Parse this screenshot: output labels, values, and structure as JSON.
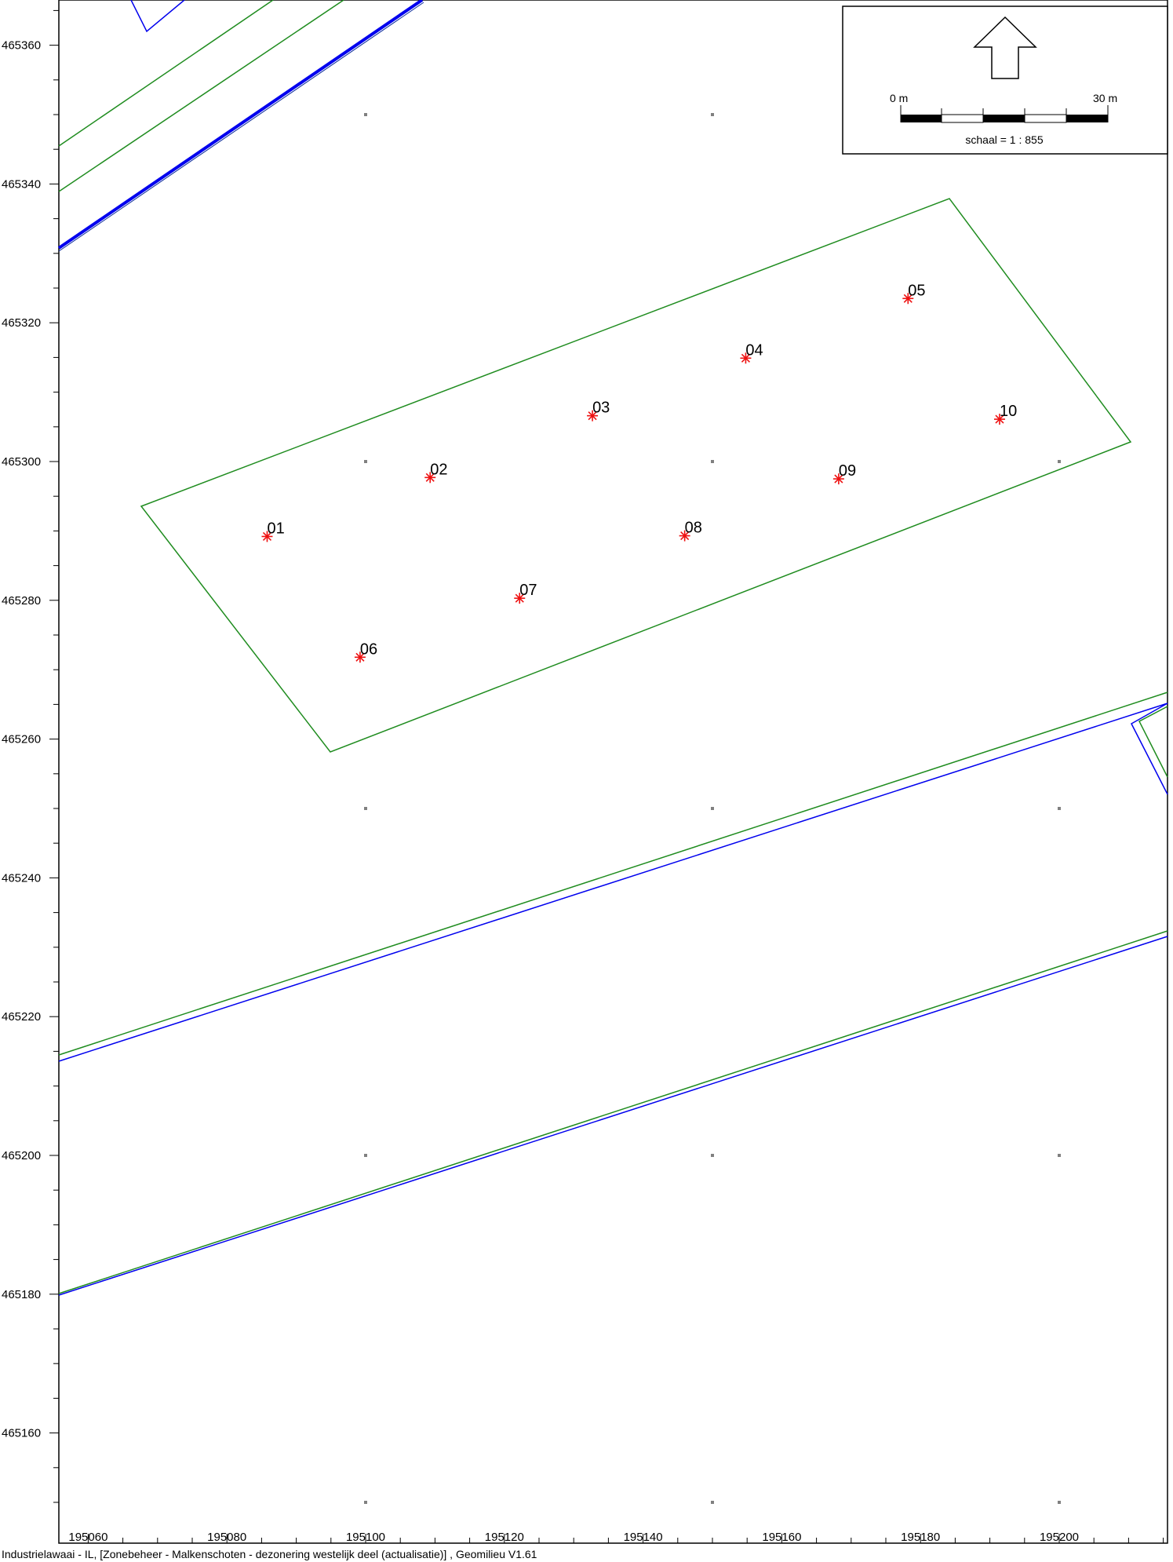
{
  "footer": "Industrielawaai - IL, [Zonebeheer - Malkenschoten - dezonering westelijk deel  (actualisatie)] , Geomilieu V1.61",
  "colors": {
    "zone": "#1f8c1f",
    "road": "#0000ee",
    "point": "#ee1111",
    "grid": "#808080"
  },
  "x_ticks": [
    "195060",
    "195080",
    "195100",
    "195120",
    "195140",
    "195160",
    "195180",
    "195200"
  ],
  "y_ticks": [
    "465360",
    "465340",
    "465320",
    "465300",
    "465280",
    "465260",
    "465240",
    "465220",
    "465200",
    "465180",
    "465160"
  ],
  "scale_bar": {
    "start_label": "0 m",
    "end_label": "30 m",
    "text": "schaal = 1 : 855"
  },
  "north_arrow": "north-arrow-icon",
  "points": [
    {
      "label": "01",
      "x": 195085.8,
      "y": 465289.2
    },
    {
      "label": "02",
      "x": 195109.3,
      "y": 465297.7
    },
    {
      "label": "03",
      "x": 195132.7,
      "y": 465306.6
    },
    {
      "label": "04",
      "x": 195154.8,
      "y": 465314.9
    },
    {
      "label": "05",
      "x": 195178.2,
      "y": 465323.5
    },
    {
      "label": "06",
      "x": 195099.2,
      "y": 465271.8
    },
    {
      "label": "07",
      "x": 195122.2,
      "y": 465280.3
    },
    {
      "label": "08",
      "x": 195146.0,
      "y": 465289.3
    },
    {
      "label": "09",
      "x": 195168.2,
      "y": 465297.5
    },
    {
      "label": "10",
      "x": 195191.4,
      "y": 465306.1
    }
  ]
}
